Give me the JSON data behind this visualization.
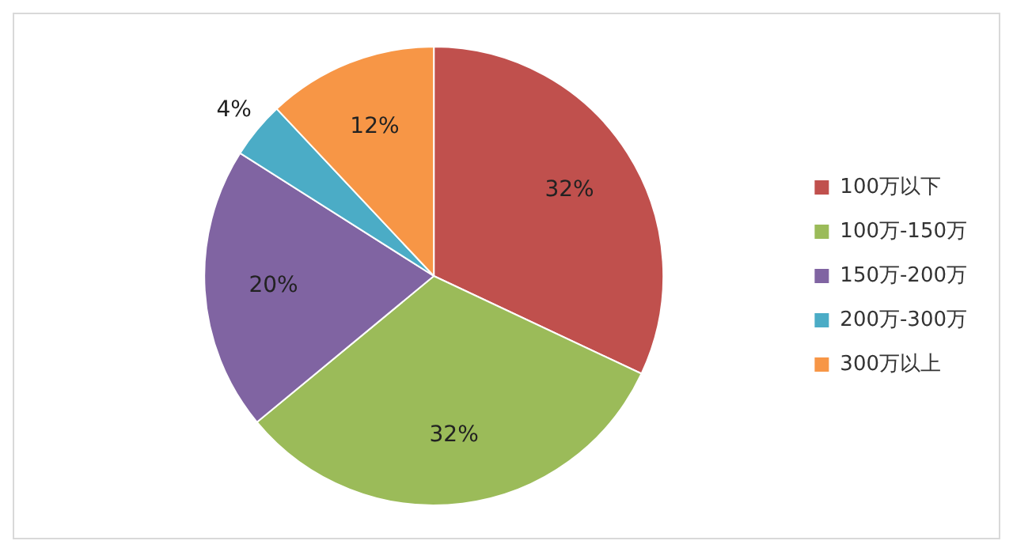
{
  "chart_data": {
    "type": "pie",
    "categories": [
      "100万以下",
      "100万-150万",
      "150万-200万",
      "200万-300万",
      "300万以上"
    ],
    "values": [
      32,
      32,
      20,
      4,
      12
    ],
    "colors": [
      "#c0504d",
      "#9bbb59",
      "#8064a2",
      "#4bacc6",
      "#f79646"
    ],
    "value_labels": [
      "32%",
      "32%",
      "20%",
      "4%",
      "12%"
    ],
    "legend": "right"
  }
}
